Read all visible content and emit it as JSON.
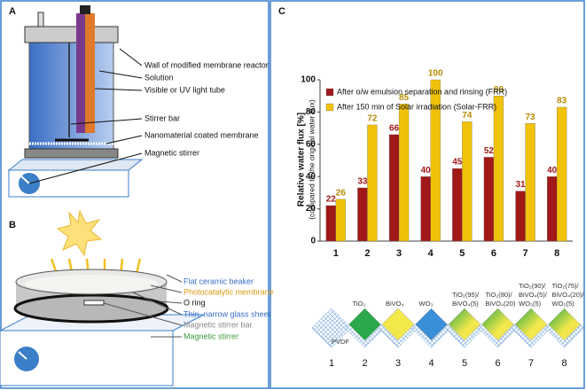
{
  "panels": {
    "a": "A",
    "b": "B",
    "c": "C"
  },
  "panel_a": {
    "labels": [
      "Wall of modified membrane reactor",
      "Solution",
      "Visible or UV light tube",
      "Stirrer bar",
      "Nanomaterial coated membrane",
      "Magnetic stirrer"
    ]
  },
  "panel_b": {
    "labels": [
      "Flat ceramic beaker",
      "Photocatalytic membrane",
      "O ring",
      "Thin, narrow glass sheet",
      "Magnetic stirrer bar",
      "Magnetic stirrer"
    ]
  },
  "membranes": [
    {
      "lines": [
        "PVDF"
      ],
      "number": "1"
    },
    {
      "lines": [
        "TiO₂"
      ],
      "number": "2"
    },
    {
      "lines": [
        "BiVO₄"
      ],
      "number": "3"
    },
    {
      "lines": [
        "WO₃"
      ],
      "number": "4"
    },
    {
      "lines": [
        "TiO₂(95)/",
        "BiVO₄(5)"
      ],
      "number": "5"
    },
    {
      "lines": [
        "TiO₂(80)/",
        "BiVO₄(20)"
      ],
      "number": "6"
    },
    {
      "lines": [
        "TiO₂(90)/",
        "BiVO₄(5)/",
        "WO₃(5)"
      ],
      "number": "7"
    },
    {
      "lines": [
        "TiO₂(75)/",
        "BiVO₄(20)/",
        "WO₃(5)"
      ],
      "number": "8"
    }
  ],
  "chart_data": {
    "type": "bar",
    "y_label": "Relative water flux [%]",
    "y_sublabel": "(compared to the original water flux)",
    "categories": [
      "1",
      "2",
      "3",
      "4",
      "5",
      "6",
      "7",
      "8"
    ],
    "series": [
      {
        "name": "After o/w emulsion separation and rinsing (FRR)",
        "color": "#a01818",
        "values": [
          22,
          33,
          66,
          40,
          45,
          52,
          31,
          40
        ]
      },
      {
        "name": "After 150 min of Solar irradiation (Solar-FRR)",
        "color": "#f0c20a",
        "values": [
          26,
          72,
          85,
          100,
          74,
          90,
          73,
          83
        ]
      }
    ],
    "ylim": [
      0,
      100
    ],
    "yticks": [
      0,
      20,
      40,
      60,
      80,
      100
    ],
    "grid": false
  }
}
